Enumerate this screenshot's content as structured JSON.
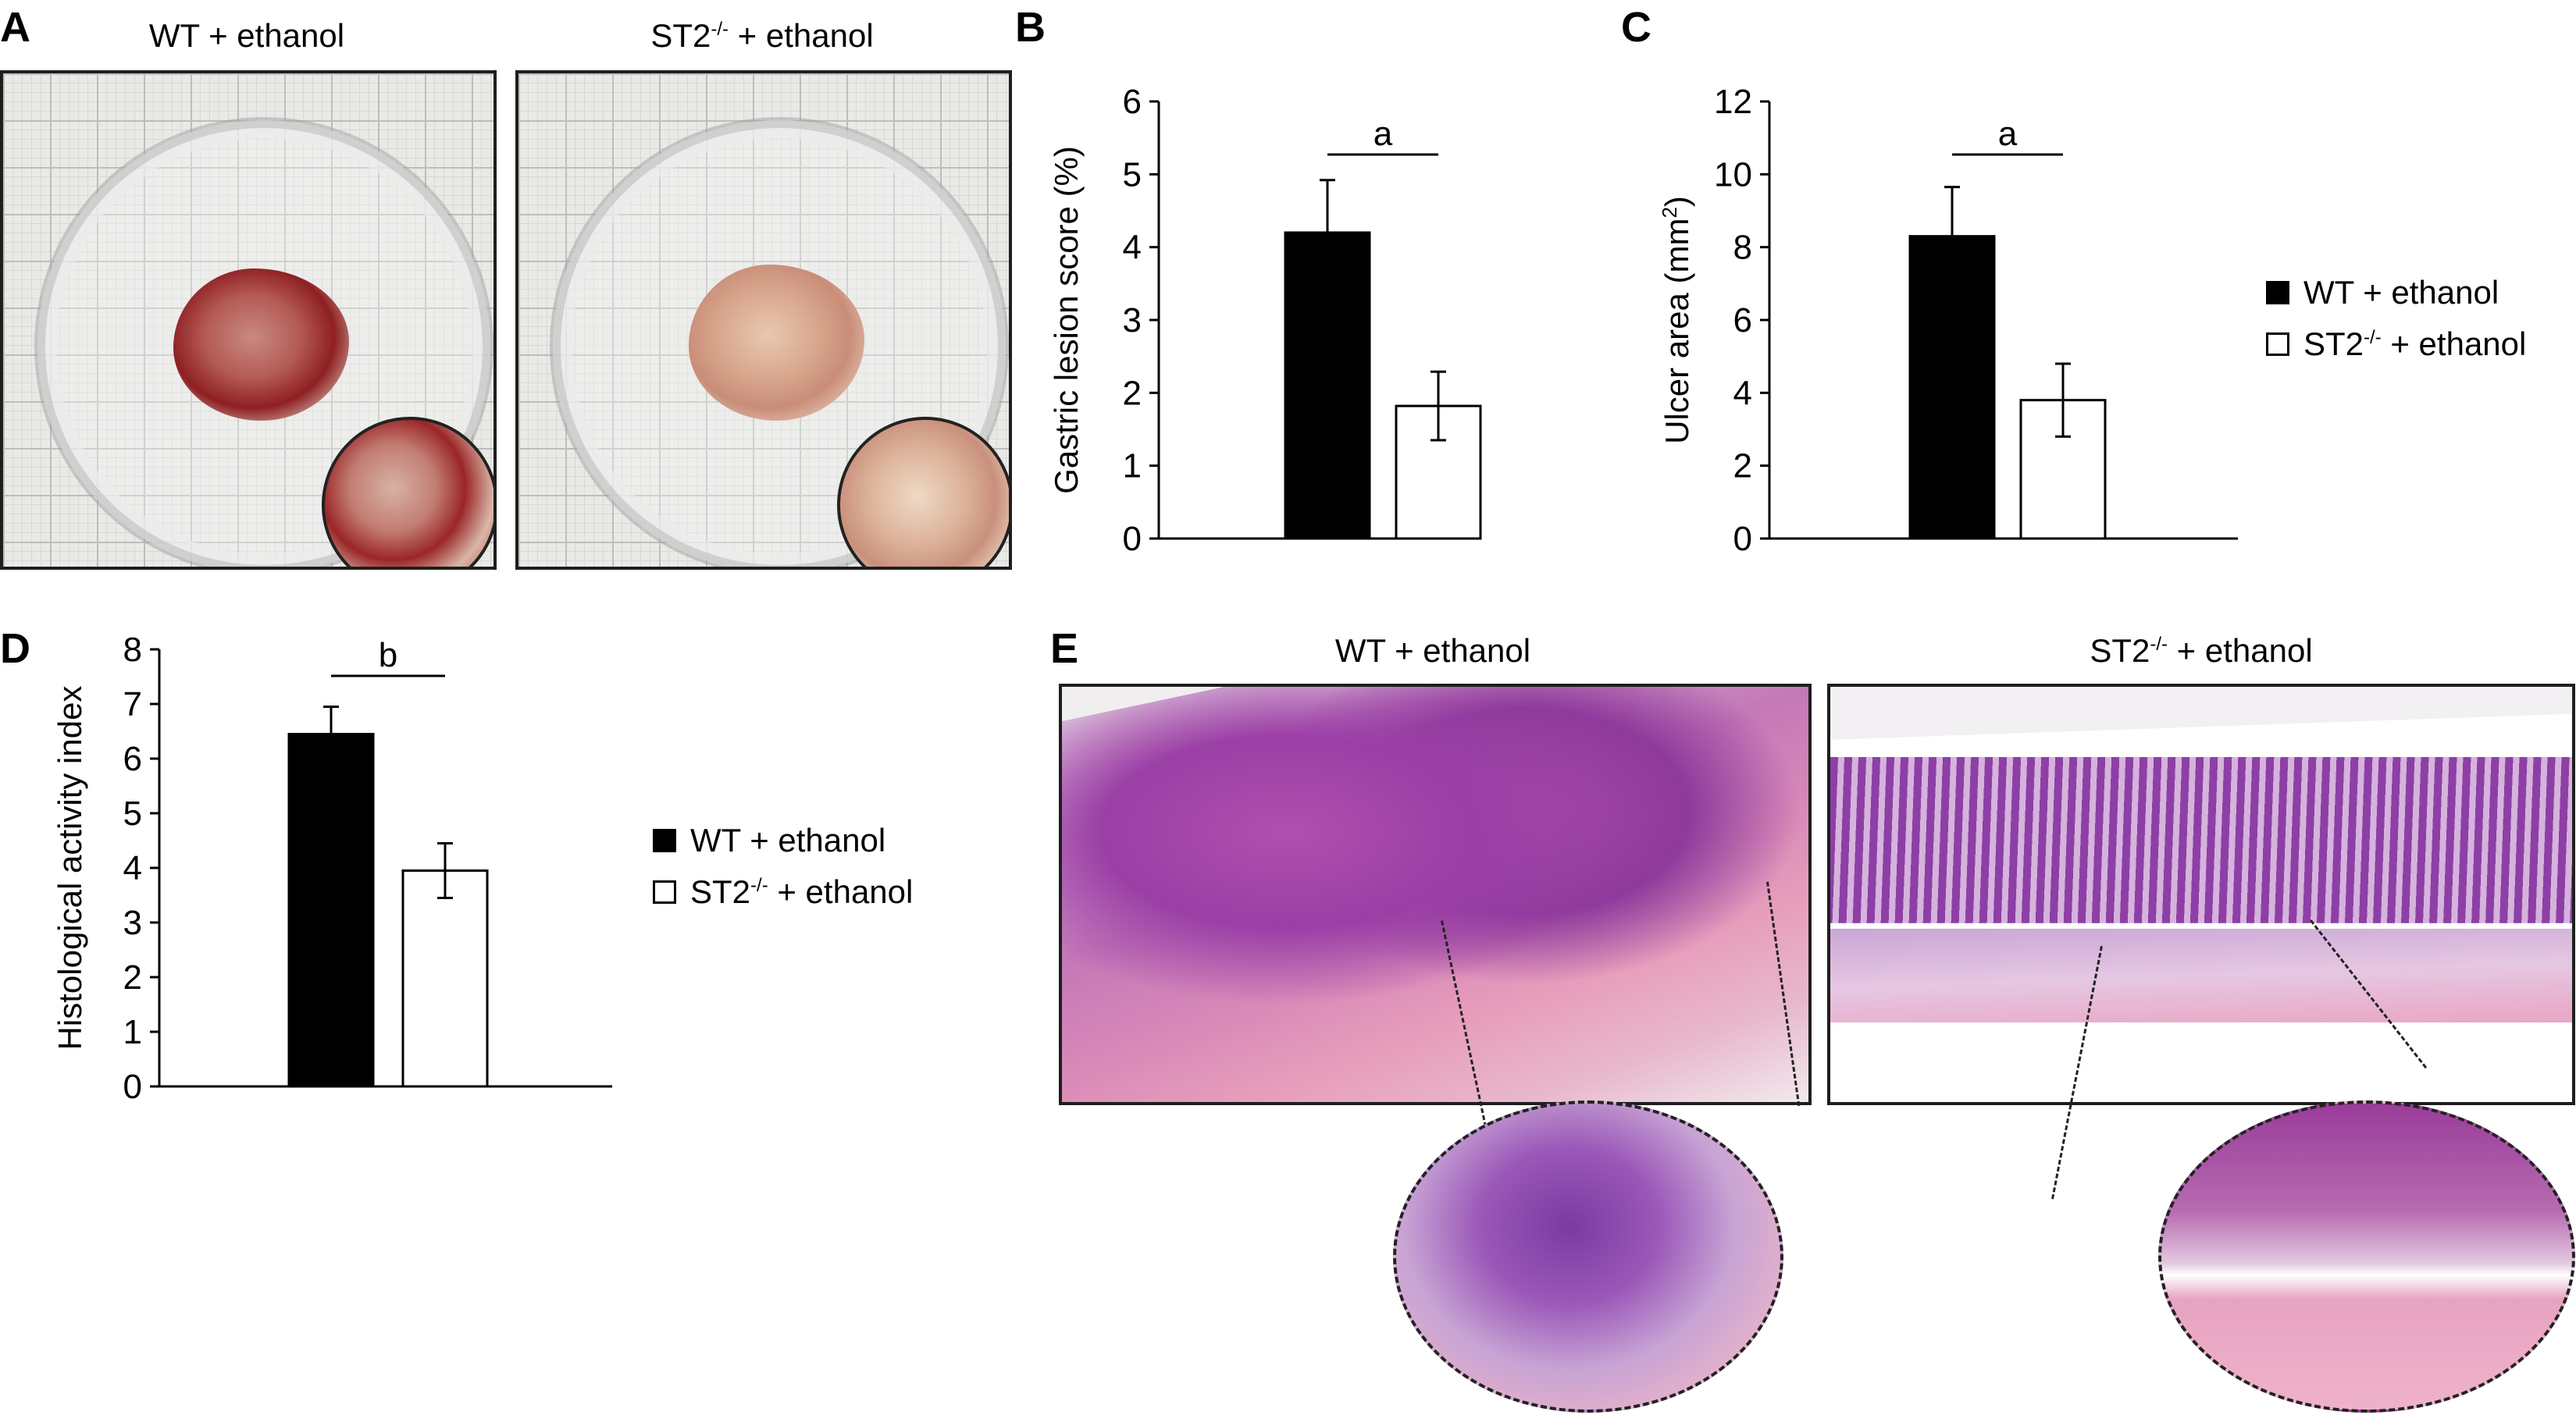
{
  "panels": {
    "A": {
      "letter": "A",
      "photos": [
        {
          "title": "WT + ethanol",
          "genotype": "WT",
          "sup": ""
        },
        {
          "title_pre": "ST2",
          "sup": "-/-",
          "title_post": " + ethanol"
        }
      ]
    },
    "B": {
      "letter": "B"
    },
    "C": {
      "letter": "C"
    },
    "D": {
      "letter": "D"
    },
    "E": {
      "letter": "E",
      "photos": [
        {
          "title": "WT + ethanol"
        },
        {
          "title_pre": "ST2",
          "sup": "-/-",
          "title_post": " + ethanol"
        }
      ]
    }
  },
  "legend_top": [
    {
      "label": "WT + ethanol",
      "fill": "#000000"
    },
    {
      "label_pre": "ST2",
      "sup": "-/-",
      "label_post": " + ethanol",
      "fill": "#ffffff"
    }
  ],
  "legend_bottom": [
    {
      "label": "WT + ethanol",
      "fill": "#000000"
    },
    {
      "label_pre": "ST2",
      "sup": "-/-",
      "label_post": " + ethanol",
      "fill": "#ffffff"
    }
  ],
  "colors": {
    "wt_bar": "#000000",
    "st2_bar": "#ffffff",
    "axis": "#000000"
  },
  "chart_data": [
    {
      "panel": "B",
      "type": "bar",
      "categories": [
        "WT + ethanol",
        "ST2-/- + ethanol"
      ],
      "values": [
        4.2,
        1.82
      ],
      "errors": [
        0.72,
        0.47
      ],
      "ylabel": "Gastric lesion score (%)",
      "ylim": [
        0,
        6
      ],
      "yticks": [
        0,
        1,
        2,
        3,
        4,
        5,
        6
      ],
      "significance": "a"
    },
    {
      "panel": "C",
      "type": "bar",
      "categories": [
        "WT + ethanol",
        "ST2-/- + ethanol"
      ],
      "values": [
        8.3,
        3.8
      ],
      "errors": [
        1.35,
        1.0
      ],
      "ylabel_pre": "Ulcer area (mm",
      "ylabel_sup": "2",
      "ylabel_post": ")",
      "ylim": [
        0,
        12
      ],
      "yticks": [
        0,
        2,
        4,
        6,
        8,
        10,
        12
      ],
      "significance": "a"
    },
    {
      "panel": "D",
      "type": "bar",
      "categories": [
        "WT + ethanol",
        "ST2-/- + ethanol"
      ],
      "values": [
        6.45,
        3.95
      ],
      "errors": [
        0.5,
        0.5
      ],
      "ylabel": "Histological activity index",
      "ylim": [
        0,
        8
      ],
      "yticks": [
        0,
        1,
        2,
        3,
        4,
        5,
        6,
        7,
        8
      ],
      "significance": "b"
    }
  ]
}
